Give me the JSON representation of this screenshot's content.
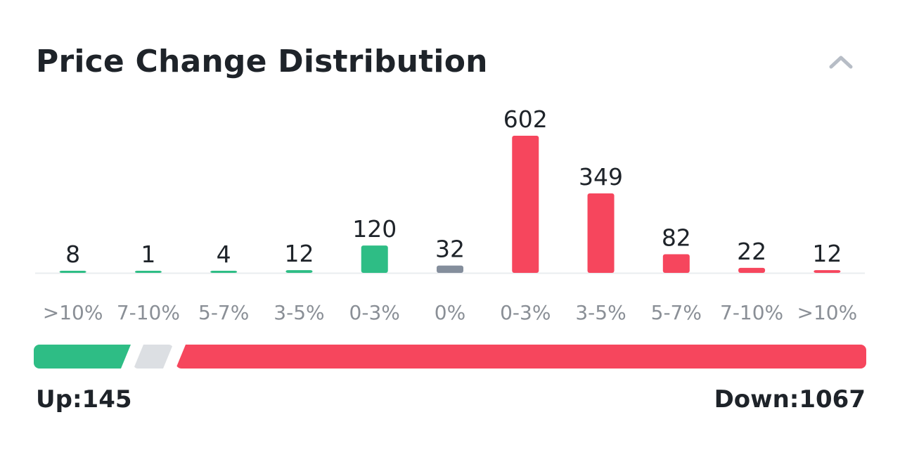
{
  "header": {
    "title": "Price Change Distribution",
    "collapse_icon": "chevron-up-icon"
  },
  "colors": {
    "up": "#2ebd85",
    "flat": "#848e9c",
    "down": "#f6465d",
    "flat_bar": "#dcdfe3"
  },
  "chart_data": {
    "type": "bar",
    "categories": [
      ">10%",
      "7-10%",
      "5-7%",
      "3-5%",
      "0-3%",
      "0%",
      "0-3%",
      "3-5%",
      "5-7%",
      "7-10%",
      ">10%"
    ],
    "values": [
      8,
      1,
      4,
      12,
      120,
      32,
      602,
      349,
      82,
      22,
      12
    ],
    "bar_colors": [
      "up",
      "up",
      "up",
      "up",
      "up",
      "flat",
      "down",
      "down",
      "down",
      "down",
      "down"
    ],
    "title": "",
    "xlabel": "",
    "ylabel": "",
    "grid": false,
    "data_labels": true
  },
  "summary": {
    "up_label": "Up:145",
    "down_label": "Down:1067",
    "up_count": 145,
    "flat_count": 32,
    "down_count": 1067
  }
}
